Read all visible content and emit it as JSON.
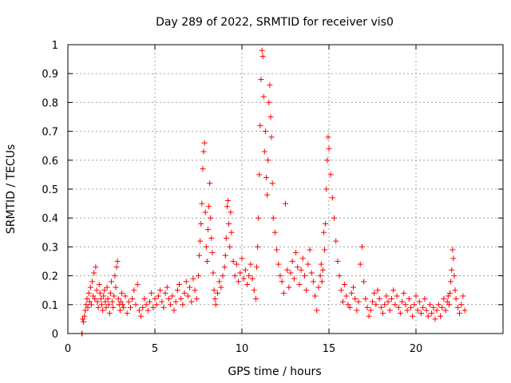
{
  "chart_data": {
    "type": "scatter",
    "title": "Day 289 of 2022, SRMTID for receiver vis0",
    "xlabel": "GPS time / hours",
    "ylabel": "SRMTID / TECUs",
    "xlim": [
      0,
      25
    ],
    "ylim": [
      0,
      1
    ],
    "xticks": [
      0,
      5,
      10,
      15,
      20
    ],
    "xtick_labels": [
      "0",
      "5",
      "10",
      "15",
      "20"
    ],
    "yticks": [
      0,
      0.1,
      0.2,
      0.3,
      0.4,
      0.5,
      0.6,
      0.7,
      0.8,
      0.9,
      1.0
    ],
    "ytick_labels": [
      "0",
      "0.1",
      "0.2",
      "0.3",
      "0.4",
      "0.5",
      "0.6",
      "0.7",
      "0.8",
      "0.9",
      "1"
    ],
    "grid": true,
    "marker": "plus",
    "series_color": "#ff0000",
    "series": [
      {
        "name": "vis0",
        "x": [
          0.8,
          0.82,
          0.85,
          0.9,
          0.95,
          1.0,
          1.05,
          1.1,
          1.15,
          1.2,
          1.25,
          1.3,
          1.35,
          1.4,
          1.45,
          1.5,
          1.55,
          1.6,
          1.65,
          1.7,
          1.75,
          1.8,
          1.85,
          1.9,
          1.95,
          2.0,
          2.05,
          2.1,
          2.15,
          2.2,
          2.25,
          2.3,
          2.35,
          2.4,
          2.45,
          2.5,
          2.55,
          2.6,
          2.65,
          2.7,
          2.75,
          2.8,
          2.85,
          2.9,
          2.95,
          3.0,
          3.05,
          3.1,
          3.15,
          3.2,
          3.3,
          3.4,
          3.5,
          3.6,
          3.7,
          3.8,
          3.9,
          4.0,
          4.1,
          4.2,
          4.3,
          4.4,
          4.5,
          4.6,
          4.7,
          4.8,
          4.9,
          5.0,
          5.1,
          5.2,
          5.3,
          5.4,
          5.5,
          5.6,
          5.7,
          5.8,
          5.9,
          6.0,
          6.1,
          6.2,
          6.3,
          6.4,
          6.5,
          6.6,
          6.7,
          6.8,
          6.9,
          7.0,
          7.1,
          7.2,
          7.3,
          7.4,
          7.5,
          7.55,
          7.6,
          7.65,
          7.7,
          7.75,
          7.8,
          7.85,
          7.9,
          7.95,
          8.0,
          8.05,
          8.1,
          8.15,
          8.2,
          8.25,
          8.3,
          8.35,
          8.4,
          8.45,
          8.5,
          8.6,
          8.7,
          8.8,
          8.9,
          9.0,
          9.05,
          9.1,
          9.15,
          9.2,
          9.25,
          9.3,
          9.35,
          9.4,
          9.5,
          9.6,
          9.7,
          9.8,
          9.9,
          10.0,
          10.1,
          10.2,
          10.3,
          10.4,
          10.5,
          10.6,
          10.7,
          10.8,
          10.85,
          10.9,
          10.95,
          11.0,
          11.05,
          11.1,
          11.15,
          11.2,
          11.25,
          11.3,
          11.35,
          11.4,
          11.45,
          11.5,
          11.55,
          11.6,
          11.65,
          11.7,
          11.75,
          11.8,
          11.9,
          12.0,
          12.1,
          12.2,
          12.3,
          12.4,
          12.5,
          12.6,
          12.7,
          12.8,
          12.9,
          13.0,
          13.1,
          13.2,
          13.3,
          13.4,
          13.5,
          13.6,
          13.7,
          13.8,
          13.9,
          14.0,
          14.1,
          14.2,
          14.3,
          14.4,
          14.5,
          14.55,
          14.6,
          14.65,
          14.7,
          14.75,
          14.8,
          14.85,
          14.9,
          14.95,
          15.0,
          15.1,
          15.2,
          15.3,
          15.4,
          15.5,
          15.6,
          15.7,
          15.8,
          15.9,
          16.0,
          16.1,
          16.2,
          16.3,
          16.4,
          16.5,
          16.6,
          16.7,
          16.8,
          16.9,
          17.0,
          17.1,
          17.2,
          17.3,
          17.4,
          17.5,
          17.6,
          17.7,
          17.8,
          17.9,
          18.0,
          18.1,
          18.2,
          18.3,
          18.4,
          18.5,
          18.6,
          18.7,
          18.8,
          18.9,
          19.0,
          19.1,
          19.2,
          19.3,
          19.4,
          19.5,
          19.6,
          19.7,
          19.8,
          19.9,
          20.0,
          20.1,
          20.2,
          20.3,
          20.4,
          20.5,
          20.6,
          20.7,
          20.8,
          20.9,
          21.0,
          21.1,
          21.2,
          21.3,
          21.4,
          21.5,
          21.6,
          21.7,
          21.8,
          21.85,
          21.9,
          21.95,
          22.0,
          22.05,
          22.1,
          22.15,
          22.2,
          22.25,
          22.3,
          22.4,
          22.5,
          22.6,
          22.7,
          22.8
        ],
        "y": [
          0.0,
          0.0,
          0.05,
          0.04,
          0.06,
          0.08,
          0.1,
          0.12,
          0.09,
          0.14,
          0.11,
          0.16,
          0.1,
          0.18,
          0.13,
          0.21,
          0.12,
          0.23,
          0.15,
          0.11,
          0.09,
          0.17,
          0.14,
          0.12,
          0.1,
          0.08,
          0.13,
          0.15,
          0.11,
          0.09,
          0.16,
          0.12,
          0.1,
          0.07,
          0.14,
          0.18,
          0.11,
          0.09,
          0.13,
          0.2,
          0.16,
          0.23,
          0.25,
          0.12,
          0.1,
          0.08,
          0.11,
          0.14,
          0.1,
          0.09,
          0.13,
          0.07,
          0.11,
          0.09,
          0.12,
          0.15,
          0.1,
          0.17,
          0.08,
          0.06,
          0.09,
          0.12,
          0.1,
          0.08,
          0.11,
          0.14,
          0.09,
          0.12,
          0.1,
          0.13,
          0.15,
          0.11,
          0.09,
          0.14,
          0.16,
          0.12,
          0.1,
          0.13,
          0.08,
          0.11,
          0.15,
          0.17,
          0.12,
          0.1,
          0.14,
          0.18,
          0.13,
          0.16,
          0.11,
          0.19,
          0.15,
          0.12,
          0.2,
          0.27,
          0.32,
          0.38,
          0.45,
          0.57,
          0.63,
          0.66,
          0.42,
          0.3,
          0.25,
          0.36,
          0.44,
          0.52,
          0.4,
          0.33,
          0.28,
          0.21,
          0.15,
          0.12,
          0.1,
          0.14,
          0.18,
          0.16,
          0.2,
          0.23,
          0.27,
          0.33,
          0.44,
          0.46,
          0.38,
          0.3,
          0.42,
          0.35,
          0.25,
          0.2,
          0.24,
          0.18,
          0.21,
          0.26,
          0.19,
          0.22,
          0.17,
          0.2,
          0.24,
          0.19,
          0.15,
          0.12,
          0.23,
          0.3,
          0.4,
          0.55,
          0.72,
          0.88,
          0.98,
          0.96,
          0.82,
          0.63,
          0.7,
          0.54,
          0.48,
          0.6,
          0.8,
          0.86,
          0.75,
          0.68,
          0.52,
          0.4,
          0.35,
          0.29,
          0.24,
          0.2,
          0.18,
          0.14,
          0.45,
          0.22,
          0.16,
          0.21,
          0.25,
          0.19,
          0.28,
          0.23,
          0.17,
          0.22,
          0.26,
          0.2,
          0.15,
          0.24,
          0.29,
          0.21,
          0.18,
          0.13,
          0.08,
          0.16,
          0.2,
          0.24,
          0.18,
          0.22,
          0.35,
          0.29,
          0.38,
          0.5,
          0.6,
          0.68,
          0.64,
          0.55,
          0.47,
          0.4,
          0.32,
          0.25,
          0.2,
          0.15,
          0.11,
          0.17,
          0.13,
          0.1,
          0.09,
          0.14,
          0.16,
          0.12,
          0.08,
          0.11,
          0.24,
          0.3,
          0.18,
          0.12,
          0.09,
          0.06,
          0.08,
          0.11,
          0.14,
          0.1,
          0.15,
          0.12,
          0.09,
          0.07,
          0.1,
          0.13,
          0.11,
          0.08,
          0.12,
          0.15,
          0.1,
          0.13,
          0.09,
          0.07,
          0.11,
          0.14,
          0.1,
          0.08,
          0.12,
          0.09,
          0.06,
          0.1,
          0.13,
          0.08,
          0.11,
          0.07,
          0.09,
          0.12,
          0.08,
          0.06,
          0.1,
          0.07,
          0.09,
          0.05,
          0.08,
          0.1,
          0.06,
          0.09,
          0.12,
          0.08,
          0.11,
          0.13,
          0.1,
          0.14,
          0.18,
          0.22,
          0.29,
          0.26,
          0.2,
          0.15,
          0.12,
          0.09,
          0.07,
          0.1,
          0.13,
          0.08
        ]
      }
    ]
  }
}
